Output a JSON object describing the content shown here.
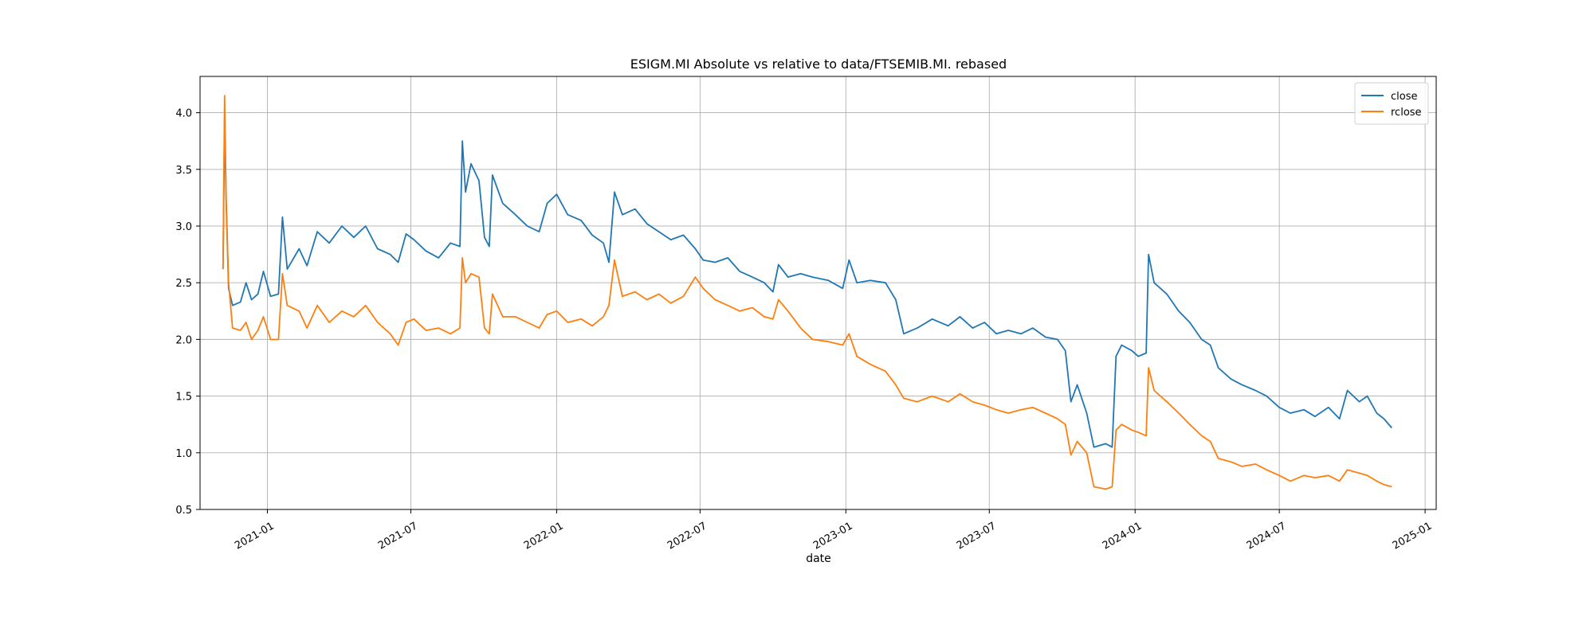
{
  "chart_data": {
    "type": "line",
    "title": "ESIGM.MI Absolute vs relative to data/FTSEMIB.MI. rebased",
    "xlabel": "date",
    "ylabel": "",
    "xlim": [
      "2020-10-08",
      "2025-01-15"
    ],
    "ylim": [
      0.5,
      4.32
    ],
    "grid": true,
    "legend_position": "top-right",
    "x_ticks": [
      "2021-01",
      "2021-07",
      "2022-01",
      "2022-07",
      "2023-01",
      "2023-07",
      "2024-01",
      "2024-07",
      "2025-01"
    ],
    "y_ticks": [
      "0.5",
      "1.0",
      "1.5",
      "2.0",
      "2.5",
      "3.0",
      "3.5",
      "4.0"
    ],
    "series": [
      {
        "name": "close",
        "color": "#1f77b4",
        "points": [
          [
            "2020-11-06",
            2.62
          ],
          [
            "2020-11-08",
            3.95
          ],
          [
            "2020-11-10",
            3.2
          ],
          [
            "2020-11-13",
            2.45
          ],
          [
            "2020-11-18",
            2.3
          ],
          [
            "2020-11-28",
            2.33
          ],
          [
            "2020-12-05",
            2.5
          ],
          [
            "2020-12-12",
            2.35
          ],
          [
            "2020-12-20",
            2.4
          ],
          [
            "2020-12-27",
            2.6
          ],
          [
            "2021-01-05",
            2.38
          ],
          [
            "2021-01-15",
            2.4
          ],
          [
            "2021-01-20",
            3.08
          ],
          [
            "2021-01-26",
            2.62
          ],
          [
            "2021-02-10",
            2.8
          ],
          [
            "2021-02-20",
            2.65
          ],
          [
            "2021-03-05",
            2.95
          ],
          [
            "2021-03-20",
            2.85
          ],
          [
            "2021-04-05",
            3.0
          ],
          [
            "2021-04-20",
            2.9
          ],
          [
            "2021-05-05",
            3.0
          ],
          [
            "2021-05-20",
            2.8
          ],
          [
            "2021-06-05",
            2.75
          ],
          [
            "2021-06-15",
            2.68
          ],
          [
            "2021-06-25",
            2.93
          ],
          [
            "2021-07-05",
            2.88
          ],
          [
            "2021-07-20",
            2.78
          ],
          [
            "2021-08-05",
            2.72
          ],
          [
            "2021-08-20",
            2.85
          ],
          [
            "2021-09-01",
            2.82
          ],
          [
            "2021-09-04",
            3.75
          ],
          [
            "2021-09-08",
            3.3
          ],
          [
            "2021-09-15",
            3.55
          ],
          [
            "2021-09-25",
            3.4
          ],
          [
            "2021-10-02",
            2.9
          ],
          [
            "2021-10-08",
            2.82
          ],
          [
            "2021-10-12",
            3.45
          ],
          [
            "2021-10-25",
            3.2
          ],
          [
            "2021-11-10",
            3.1
          ],
          [
            "2021-11-25",
            3.0
          ],
          [
            "2021-12-10",
            2.95
          ],
          [
            "2021-12-20",
            3.2
          ],
          [
            "2022-01-01",
            3.28
          ],
          [
            "2022-01-15",
            3.1
          ],
          [
            "2022-02-01",
            3.05
          ],
          [
            "2022-02-15",
            2.92
          ],
          [
            "2022-03-01",
            2.85
          ],
          [
            "2022-03-08",
            2.68
          ],
          [
            "2022-03-15",
            3.3
          ],
          [
            "2022-03-25",
            3.1
          ],
          [
            "2022-04-10",
            3.15
          ],
          [
            "2022-04-25",
            3.02
          ],
          [
            "2022-05-10",
            2.95
          ],
          [
            "2022-05-25",
            2.88
          ],
          [
            "2022-06-10",
            2.92
          ],
          [
            "2022-06-25",
            2.8
          ],
          [
            "2022-07-05",
            2.7
          ],
          [
            "2022-07-20",
            2.68
          ],
          [
            "2022-08-05",
            2.72
          ],
          [
            "2022-08-20",
            2.6
          ],
          [
            "2022-09-05",
            2.55
          ],
          [
            "2022-09-20",
            2.5
          ],
          [
            "2022-10-01",
            2.42
          ],
          [
            "2022-10-08",
            2.66
          ],
          [
            "2022-10-20",
            2.55
          ],
          [
            "2022-11-05",
            2.58
          ],
          [
            "2022-11-20",
            2.55
          ],
          [
            "2022-12-10",
            2.52
          ],
          [
            "2022-12-28",
            2.45
          ],
          [
            "2023-01-05",
            2.7
          ],
          [
            "2023-01-15",
            2.5
          ],
          [
            "2023-02-01",
            2.52
          ],
          [
            "2023-02-20",
            2.5
          ],
          [
            "2023-03-05",
            2.35
          ],
          [
            "2023-03-15",
            2.05
          ],
          [
            "2023-04-01",
            2.1
          ],
          [
            "2023-04-20",
            2.18
          ],
          [
            "2023-05-10",
            2.12
          ],
          [
            "2023-05-25",
            2.2
          ],
          [
            "2023-06-10",
            2.1
          ],
          [
            "2023-06-25",
            2.15
          ],
          [
            "2023-07-10",
            2.05
          ],
          [
            "2023-07-25",
            2.08
          ],
          [
            "2023-08-10",
            2.05
          ],
          [
            "2023-08-25",
            2.1
          ],
          [
            "2023-09-10",
            2.02
          ],
          [
            "2023-09-25",
            2.0
          ],
          [
            "2023-10-05",
            1.9
          ],
          [
            "2023-10-12",
            1.45
          ],
          [
            "2023-10-20",
            1.6
          ],
          [
            "2023-11-01",
            1.35
          ],
          [
            "2023-11-10",
            1.05
          ],
          [
            "2023-11-25",
            1.08
          ],
          [
            "2023-12-03",
            1.05
          ],
          [
            "2023-12-08",
            1.85
          ],
          [
            "2023-12-15",
            1.95
          ],
          [
            "2023-12-28",
            1.9
          ],
          [
            "2024-01-05",
            1.85
          ],
          [
            "2024-01-15",
            1.88
          ],
          [
            "2024-01-18",
            2.75
          ],
          [
            "2024-01-25",
            2.5
          ],
          [
            "2024-02-10",
            2.4
          ],
          [
            "2024-02-25",
            2.25
          ],
          [
            "2024-03-10",
            2.15
          ],
          [
            "2024-03-25",
            2.0
          ],
          [
            "2024-04-05",
            1.95
          ],
          [
            "2024-04-15",
            1.75
          ],
          [
            "2024-05-01",
            1.65
          ],
          [
            "2024-05-15",
            1.6
          ],
          [
            "2024-06-01",
            1.55
          ],
          [
            "2024-06-15",
            1.5
          ],
          [
            "2024-07-01",
            1.4
          ],
          [
            "2024-07-15",
            1.35
          ],
          [
            "2024-08-01",
            1.38
          ],
          [
            "2024-08-15",
            1.32
          ],
          [
            "2024-09-01",
            1.4
          ],
          [
            "2024-09-15",
            1.3
          ],
          [
            "2024-09-25",
            1.55
          ],
          [
            "2024-10-10",
            1.45
          ],
          [
            "2024-10-20",
            1.5
          ],
          [
            "2024-11-01",
            1.35
          ],
          [
            "2024-11-10",
            1.3
          ],
          [
            "2024-11-20",
            1.22
          ]
        ]
      },
      {
        "name": "rclose",
        "color": "#ff7f0e",
        "points": [
          [
            "2020-11-06",
            2.62
          ],
          [
            "2020-11-08",
            4.15
          ],
          [
            "2020-11-10",
            3.25
          ],
          [
            "2020-11-13",
            2.5
          ],
          [
            "2020-11-18",
            2.1
          ],
          [
            "2020-11-28",
            2.08
          ],
          [
            "2020-12-05",
            2.15
          ],
          [
            "2020-12-12",
            2.0
          ],
          [
            "2020-12-20",
            2.08
          ],
          [
            "2020-12-27",
            2.2
          ],
          [
            "2021-01-05",
            2.0
          ],
          [
            "2021-01-15",
            2.0
          ],
          [
            "2021-01-20",
            2.58
          ],
          [
            "2021-01-26",
            2.3
          ],
          [
            "2021-02-10",
            2.25
          ],
          [
            "2021-02-20",
            2.1
          ],
          [
            "2021-03-05",
            2.3
          ],
          [
            "2021-03-20",
            2.15
          ],
          [
            "2021-04-05",
            2.25
          ],
          [
            "2021-04-20",
            2.2
          ],
          [
            "2021-05-05",
            2.3
          ],
          [
            "2021-05-20",
            2.15
          ],
          [
            "2021-06-05",
            2.05
          ],
          [
            "2021-06-15",
            1.95
          ],
          [
            "2021-06-25",
            2.15
          ],
          [
            "2021-07-05",
            2.18
          ],
          [
            "2021-07-20",
            2.08
          ],
          [
            "2021-08-05",
            2.1
          ],
          [
            "2021-08-20",
            2.05
          ],
          [
            "2021-09-01",
            2.1
          ],
          [
            "2021-09-04",
            2.72
          ],
          [
            "2021-09-08",
            2.5
          ],
          [
            "2021-09-15",
            2.58
          ],
          [
            "2021-09-25",
            2.55
          ],
          [
            "2021-10-02",
            2.1
          ],
          [
            "2021-10-08",
            2.05
          ],
          [
            "2021-10-12",
            2.4
          ],
          [
            "2021-10-25",
            2.2
          ],
          [
            "2021-11-10",
            2.2
          ],
          [
            "2021-11-25",
            2.15
          ],
          [
            "2021-12-10",
            2.1
          ],
          [
            "2021-12-20",
            2.22
          ],
          [
            "2022-01-01",
            2.25
          ],
          [
            "2022-01-15",
            2.15
          ],
          [
            "2022-02-01",
            2.18
          ],
          [
            "2022-02-15",
            2.12
          ],
          [
            "2022-03-01",
            2.2
          ],
          [
            "2022-03-08",
            2.3
          ],
          [
            "2022-03-15",
            2.7
          ],
          [
            "2022-03-25",
            2.38
          ],
          [
            "2022-04-10",
            2.42
          ],
          [
            "2022-04-25",
            2.35
          ],
          [
            "2022-05-10",
            2.4
          ],
          [
            "2022-05-25",
            2.32
          ],
          [
            "2022-06-10",
            2.38
          ],
          [
            "2022-06-25",
            2.55
          ],
          [
            "2022-07-05",
            2.45
          ],
          [
            "2022-07-20",
            2.35
          ],
          [
            "2022-08-05",
            2.3
          ],
          [
            "2022-08-20",
            2.25
          ],
          [
            "2022-09-05",
            2.28
          ],
          [
            "2022-09-20",
            2.2
          ],
          [
            "2022-10-01",
            2.18
          ],
          [
            "2022-10-08",
            2.35
          ],
          [
            "2022-10-20",
            2.25
          ],
          [
            "2022-11-05",
            2.1
          ],
          [
            "2022-11-20",
            2.0
          ],
          [
            "2022-12-10",
            1.98
          ],
          [
            "2022-12-28",
            1.95
          ],
          [
            "2023-01-05",
            2.05
          ],
          [
            "2023-01-15",
            1.85
          ],
          [
            "2023-02-01",
            1.78
          ],
          [
            "2023-02-20",
            1.72
          ],
          [
            "2023-03-05",
            1.6
          ],
          [
            "2023-03-15",
            1.48
          ],
          [
            "2023-04-01",
            1.45
          ],
          [
            "2023-04-20",
            1.5
          ],
          [
            "2023-05-10",
            1.45
          ],
          [
            "2023-05-25",
            1.52
          ],
          [
            "2023-06-10",
            1.45
          ],
          [
            "2023-06-25",
            1.42
          ],
          [
            "2023-07-10",
            1.38
          ],
          [
            "2023-07-25",
            1.35
          ],
          [
            "2023-08-10",
            1.38
          ],
          [
            "2023-08-25",
            1.4
          ],
          [
            "2023-09-10",
            1.35
          ],
          [
            "2023-09-25",
            1.3
          ],
          [
            "2023-10-05",
            1.25
          ],
          [
            "2023-10-12",
            0.98
          ],
          [
            "2023-10-20",
            1.1
          ],
          [
            "2023-11-01",
            1.0
          ],
          [
            "2023-11-10",
            0.7
          ],
          [
            "2023-11-25",
            0.68
          ],
          [
            "2023-12-03",
            0.7
          ],
          [
            "2023-12-08",
            1.2
          ],
          [
            "2023-12-15",
            1.25
          ],
          [
            "2023-12-28",
            1.2
          ],
          [
            "2024-01-05",
            1.18
          ],
          [
            "2024-01-15",
            1.15
          ],
          [
            "2024-01-18",
            1.75
          ],
          [
            "2024-01-25",
            1.55
          ],
          [
            "2024-02-10",
            1.45
          ],
          [
            "2024-02-25",
            1.35
          ],
          [
            "2024-03-10",
            1.25
          ],
          [
            "2024-03-25",
            1.15
          ],
          [
            "2024-04-05",
            1.1
          ],
          [
            "2024-04-15",
            0.95
          ],
          [
            "2024-05-01",
            0.92
          ],
          [
            "2024-05-15",
            0.88
          ],
          [
            "2024-06-01",
            0.9
          ],
          [
            "2024-06-15",
            0.85
          ],
          [
            "2024-07-01",
            0.8
          ],
          [
            "2024-07-15",
            0.75
          ],
          [
            "2024-08-01",
            0.8
          ],
          [
            "2024-08-15",
            0.78
          ],
          [
            "2024-09-01",
            0.8
          ],
          [
            "2024-09-15",
            0.75
          ],
          [
            "2024-09-25",
            0.85
          ],
          [
            "2024-10-10",
            0.82
          ],
          [
            "2024-10-20",
            0.8
          ],
          [
            "2024-11-01",
            0.75
          ],
          [
            "2024-11-10",
            0.72
          ],
          [
            "2024-11-20",
            0.7
          ]
        ]
      }
    ]
  }
}
